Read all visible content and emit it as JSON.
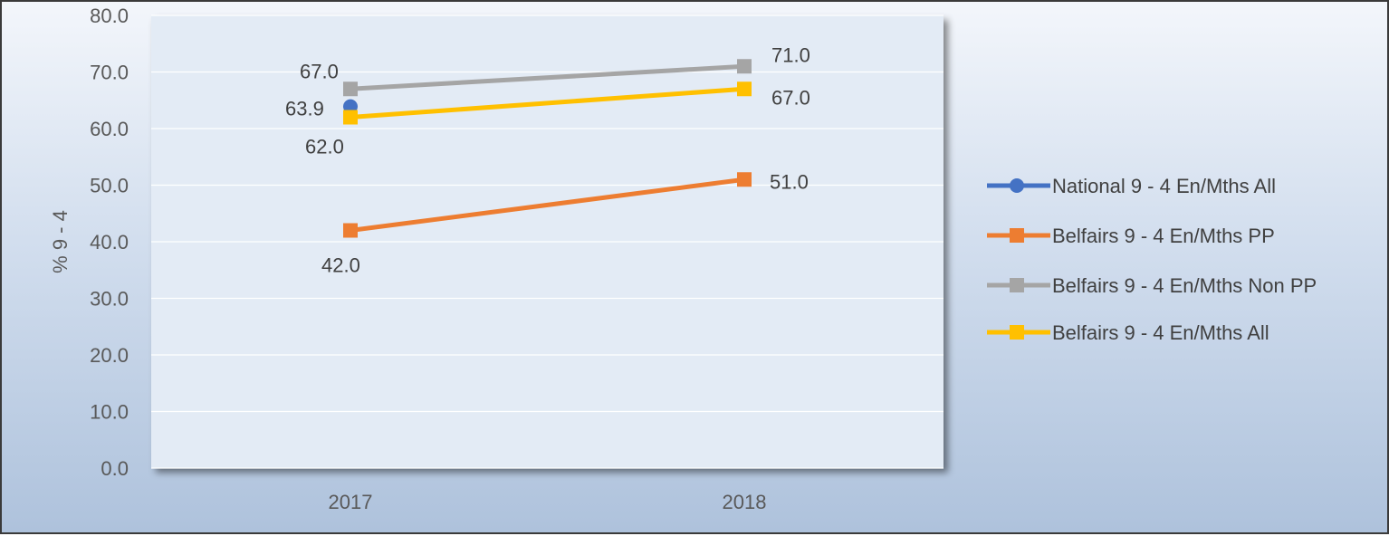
{
  "chart_data": {
    "type": "line",
    "categories": [
      "2017",
      "2018"
    ],
    "ylabel": "% 9 - 4",
    "ylim": [
      0,
      80
    ],
    "ytick_labels": [
      "0.0",
      "10.0",
      "20.0",
      "30.0",
      "40.0",
      "50.0",
      "60.0",
      "70.0",
      "80.0"
    ],
    "grid": true,
    "legend_position": "right",
    "series": [
      {
        "name": "National 9 - 4 En/Mths All",
        "values": [
          63.9,
          null
        ],
        "labels": [
          "63.9",
          ""
        ],
        "color": "#4472c4",
        "marker": "circle"
      },
      {
        "name": "Belfairs 9 - 4 En/Mths PP",
        "values": [
          42.0,
          51.0
        ],
        "labels": [
          "42.0",
          "51.0"
        ],
        "color": "#ed7d31",
        "marker": "square"
      },
      {
        "name": "Belfairs 9 - 4 En/Mths Non PP",
        "values": [
          67.0,
          71.0
        ],
        "labels": [
          "67.0",
          "71.0"
        ],
        "color": "#a5a5a5",
        "marker": "square"
      },
      {
        "name": "Belfairs 9 - 4 En/Mths All",
        "values": [
          62.0,
          67.0
        ],
        "labels": [
          "62.0",
          "67.0"
        ],
        "color": "#ffc000",
        "marker": "square"
      }
    ]
  }
}
